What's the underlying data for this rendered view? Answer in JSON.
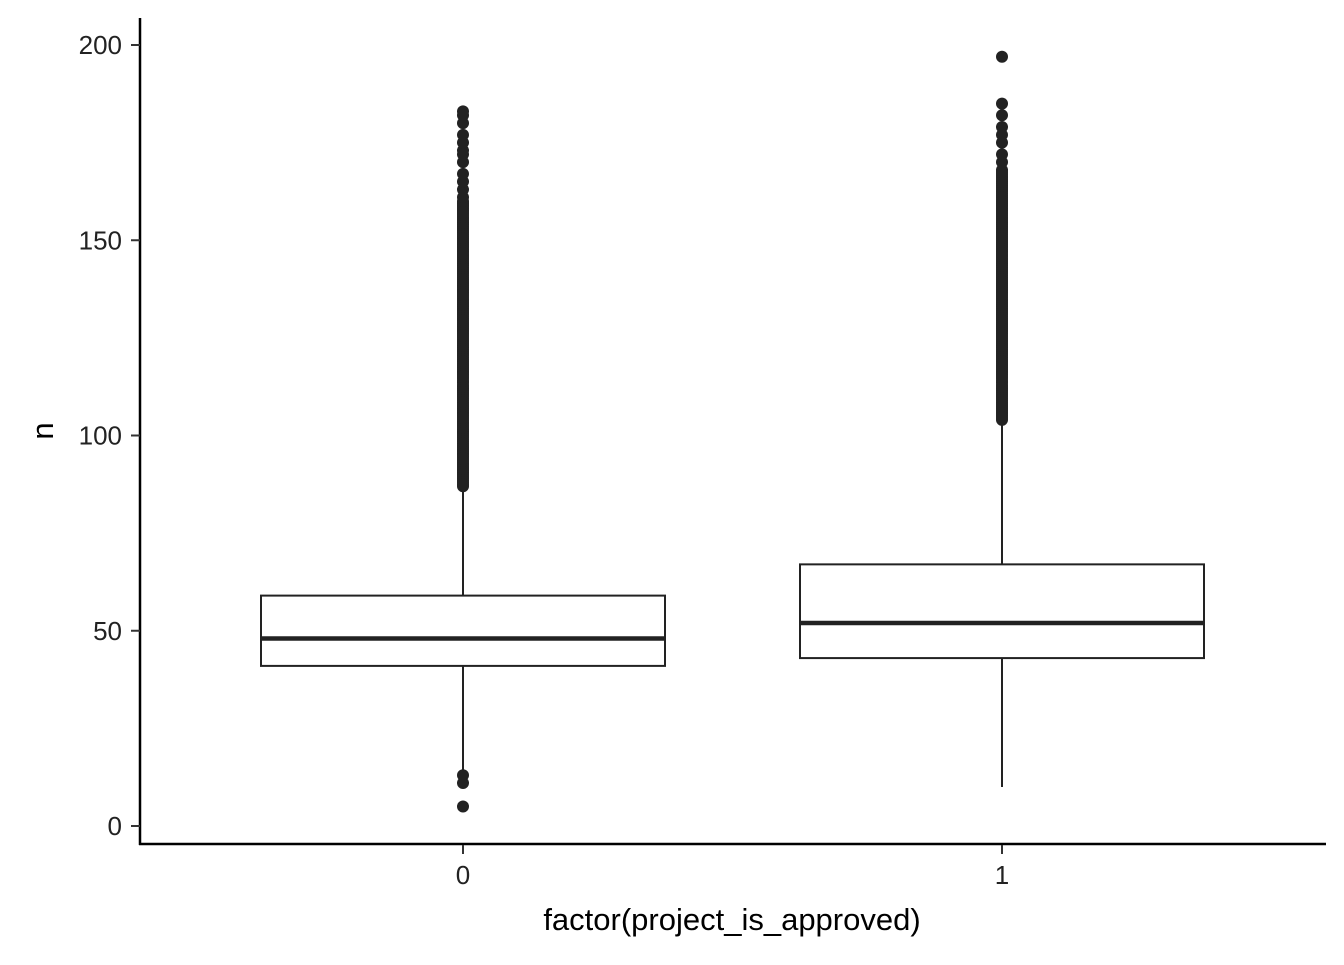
{
  "chart_data": {
    "type": "boxplot",
    "xlabel": "factor(project_is_approved)",
    "ylabel": "n",
    "ylim": [
      -4,
      207
    ],
    "y_ticks": [
      0,
      50,
      100,
      150,
      200
    ],
    "grid": false,
    "legend": "none",
    "categories": [
      "0",
      "1"
    ],
    "colors": {
      "line": "#222222",
      "box_fill": "#ffffff",
      "axis": "#000000"
    },
    "boxes": [
      {
        "category": "0",
        "whisker_low": 14,
        "q1": 41,
        "median": 48,
        "q3": 59,
        "whisker_high": 86,
        "outliers_high_range": [
          87,
          160
        ],
        "outliers_high": [
          161,
          163,
          165,
          167,
          170,
          172,
          173,
          175,
          177,
          180,
          182,
          183
        ],
        "outliers_low": [
          13,
          11,
          5
        ]
      },
      {
        "category": "1",
        "whisker_low": 10,
        "q1": 43,
        "median": 52,
        "q3": 67,
        "whisker_high": 103,
        "outliers_high_range": [
          104,
          168
        ],
        "outliers_high": [
          170,
          172,
          175,
          177,
          179,
          182,
          185,
          197
        ],
        "outliers_low": []
      }
    ]
  }
}
